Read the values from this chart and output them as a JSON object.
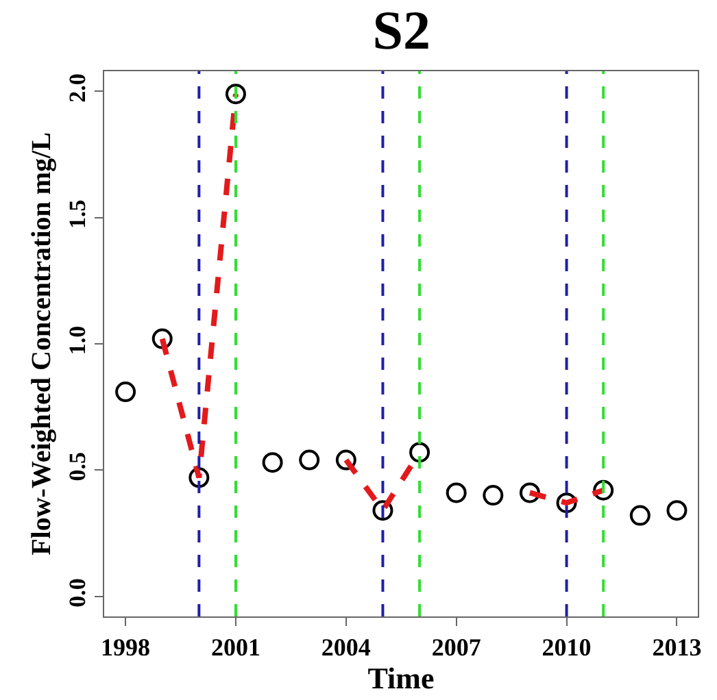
{
  "chart_data": {
    "type": "scatter",
    "title": "S2",
    "xlabel": "Time",
    "ylabel": "Flow-Weighted Concentration mg/L",
    "x": [
      1998,
      1999,
      2000,
      2001,
      2002,
      2003,
      2004,
      2005,
      2006,
      2007,
      2008,
      2009,
      2010,
      2011,
      2012,
      2013
    ],
    "series": [
      {
        "color": "#000000",
        "marker": "circle",
        "values": [
          0.81,
          1.02,
          0.47,
          1.99,
          0.53,
          0.54,
          0.54,
          0.34,
          0.57,
          0.41,
          0.4,
          0.41,
          0.37,
          0.42,
          0.32,
          0.34
        ]
      },
      {
        "type": "line",
        "color": "#e31a1c",
        "line_style": "dashed",
        "marker": "none",
        "x": [
          1999,
          2000,
          2001
        ],
        "values": [
          1.02,
          0.47,
          1.99
        ]
      },
      {
        "type": "line",
        "color": "#e31a1c",
        "line_style": "dashed",
        "marker": "none",
        "x": [
          2004,
          2005,
          2006
        ],
        "values": [
          0.54,
          0.34,
          0.57
        ]
      },
      {
        "type": "line",
        "color": "#e31a1c",
        "line_style": "dashed",
        "marker": "none",
        "x": [
          2009,
          2010,
          2011
        ],
        "values": [
          0.41,
          0.37,
          0.42
        ]
      }
    ],
    "ref_lines": [
      {
        "axis": "x",
        "value": 2000,
        "color": "#1f1fa8",
        "line_style": "dashed"
      },
      {
        "axis": "x",
        "value": 2001,
        "color": "#33dd33",
        "line_style": "dashed"
      },
      {
        "axis": "x",
        "value": 2005,
        "color": "#1f1fa8",
        "line_style": "dashed"
      },
      {
        "axis": "x",
        "value": 2006,
        "color": "#33dd33",
        "line_style": "dashed"
      },
      {
        "axis": "x",
        "value": 2010,
        "color": "#1f1fa8",
        "line_style": "dashed"
      },
      {
        "axis": "x",
        "value": 2011,
        "color": "#33dd33",
        "line_style": "dashed"
      }
    ],
    "xlim": [
      1997.42,
      2013.57
    ],
    "xticks": [
      1998,
      2001,
      2004,
      2007,
      2010,
      2013
    ],
    "ylim": [
      -0.08,
      2.08
    ],
    "yticks": [
      {
        "value": 0,
        "label": "0.0"
      },
      0.5,
      {
        "value": 1,
        "label": "1.0"
      },
      1.5,
      {
        "value": 2,
        "label": "2.0"
      }
    ]
  }
}
